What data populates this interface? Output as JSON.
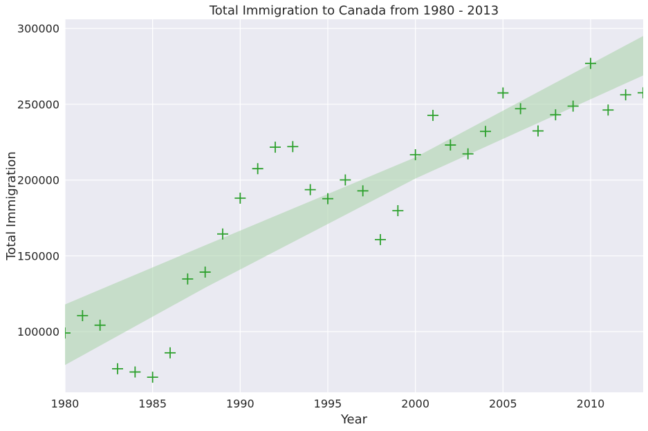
{
  "chart_data": {
    "type": "scatter",
    "title": "Total Immigration to Canada from 1980 - 2013",
    "xlabel": "Year",
    "ylabel": "Total Immigration",
    "xlim": [
      1980,
      2013
    ],
    "ylim": [
      60000,
      306000
    ],
    "x_ticks": [
      1980,
      1985,
      1990,
      1995,
      2000,
      2005,
      2010
    ],
    "y_ticks": [
      100000,
      150000,
      200000,
      250000,
      300000
    ],
    "x": [
      1980,
      1981,
      1982,
      1983,
      1984,
      1985,
      1986,
      1987,
      1988,
      1989,
      1990,
      1991,
      1992,
      1993,
      1994,
      1995,
      1996,
      1997,
      1998,
      1999,
      2000,
      2001,
      2002,
      2003,
      2004,
      2005,
      2006,
      2007,
      2008,
      2009,
      2010,
      2011,
      2012,
      2013
    ],
    "y": [
      99137,
      110563,
      104271,
      75550,
      73417,
      69978,
      86048,
      134771,
      139306,
      164432,
      188054,
      207509,
      221687,
      222049,
      193665,
      187712,
      200085,
      192885,
      160727,
      179818,
      216712,
      242643,
      223111,
      217297,
      232083,
      257457,
      247057,
      232405,
      243047,
      248768,
      276956,
      246194,
      256222,
      257537
    ],
    "regression_band": {
      "x": [
        1980,
        1988,
        2000,
        2013
      ],
      "lower": [
        78000,
        129000,
        201000,
        269000
      ],
      "upper": [
        118000,
        157000,
        215000,
        295000
      ]
    },
    "marker": "+",
    "colors": {
      "points": "#2ca02c",
      "band": "#a8d2a8",
      "background": "#eaeaf2",
      "grid": "#ffffff"
    },
    "grid": true
  }
}
